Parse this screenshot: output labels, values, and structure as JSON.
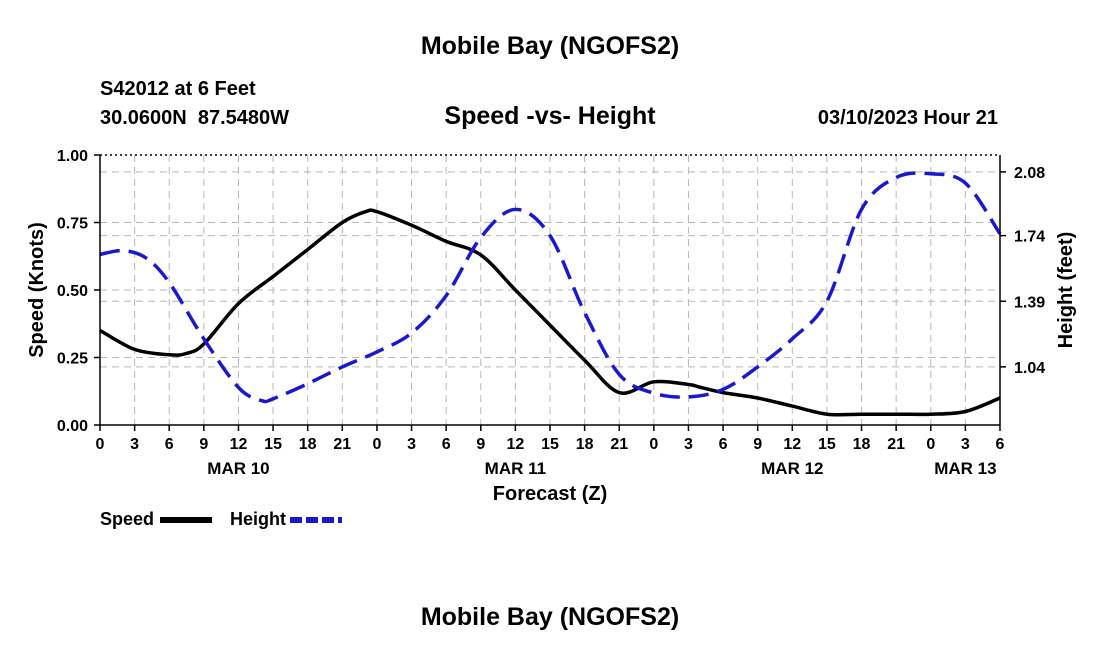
{
  "header": {
    "title": "Mobile Bay (NGOFS2)",
    "station": "S42012 at 6 Feet",
    "coords": "30.0600N  87.5480W",
    "subtitle": "Speed -vs- Height",
    "timestamp": "03/10/2023 Hour 21",
    "footer_title": "Mobile Bay (NGOFS2)"
  },
  "colors": {
    "speed": "#000000",
    "height": "#1a1acc",
    "grid": "#b8b8b8",
    "axis": "#000000"
  },
  "chart_data": {
    "type": "line",
    "title": "Speed -vs- Height",
    "xlabel": "Forecast (Z)",
    "ylabel": "Speed (Knots)",
    "y2label": "Height (feet)",
    "xlim": [
      0,
      78
    ],
    "ylim": [
      0,
      1
    ],
    "y2lim": [
      0.73,
      2.17
    ],
    "x_ticks": [
      0,
      3,
      6,
      9,
      12,
      15,
      18,
      21,
      24,
      27,
      30,
      33,
      36,
      39,
      42,
      45,
      48,
      51,
      54,
      57,
      60,
      63,
      66,
      69,
      72,
      75,
      78
    ],
    "x_tick_labels": [
      "0",
      "3",
      "6",
      "9",
      "12",
      "15",
      "18",
      "21",
      "0",
      "3",
      "6",
      "9",
      "12",
      "15",
      "18",
      "21",
      "0",
      "3",
      "6",
      "9",
      "12",
      "15",
      "18",
      "21",
      "0",
      "3",
      "6"
    ],
    "date_labels": [
      {
        "x": 12,
        "label": "MAR 10"
      },
      {
        "x": 36,
        "label": "MAR 11"
      },
      {
        "x": 60,
        "label": "MAR 12"
      },
      {
        "x": 75,
        "label": "MAR 13"
      }
    ],
    "y_ticks": [
      0,
      0.25,
      0.5,
      0.75,
      1.0
    ],
    "y_tick_labels": [
      "0.00",
      "0.25",
      "0.50",
      "0.75",
      "1.00"
    ],
    "y2_ticks": [
      1.04,
      1.39,
      1.74,
      2.08
    ],
    "y2_tick_labels": [
      "1.04",
      "1.39",
      "1.74",
      "2.08"
    ],
    "grid": true,
    "legend": {
      "placement": "bottom-left",
      "items": [
        {
          "name": "Speed",
          "style": "solid"
        },
        {
          "name": "Height",
          "style": "dashed"
        }
      ]
    },
    "series": [
      {
        "name": "Speed",
        "axis": "left",
        "style": "solid",
        "x": [
          0,
          3,
          6,
          7.5,
          9,
          12,
          15,
          18,
          21,
          23,
          24,
          27,
          30,
          33,
          36,
          39,
          42,
          45,
          48,
          51,
          52,
          54,
          57,
          60,
          63,
          66,
          69,
          72,
          75,
          78
        ],
        "values": [
          0.35,
          0.28,
          0.26,
          0.265,
          0.3,
          0.45,
          0.55,
          0.65,
          0.75,
          0.79,
          0.79,
          0.74,
          0.68,
          0.63,
          0.5,
          0.37,
          0.24,
          0.12,
          0.16,
          0.15,
          0.14,
          0.12,
          0.1,
          0.07,
          0.04,
          0.04,
          0.04,
          0.04,
          0.05,
          0.1
        ]
      },
      {
        "name": "Height",
        "axis": "right",
        "style": "dashed",
        "x": [
          0,
          2,
          4,
          6,
          9,
          12,
          14,
          15,
          18,
          21,
          24,
          27,
          30,
          33,
          36,
          39,
          42,
          45,
          48,
          51,
          54,
          57,
          60,
          63,
          66,
          69,
          72,
          75,
          78
        ],
        "values": [
          1.64,
          1.66,
          1.62,
          1.49,
          1.19,
          0.93,
          0.86,
          0.87,
          0.95,
          1.04,
          1.12,
          1.22,
          1.42,
          1.73,
          1.88,
          1.74,
          1.33,
          1.0,
          0.9,
          0.88,
          0.92,
          1.04,
          1.19,
          1.39,
          1.88,
          2.05,
          2.07,
          2.02,
          1.75
        ]
      }
    ]
  }
}
